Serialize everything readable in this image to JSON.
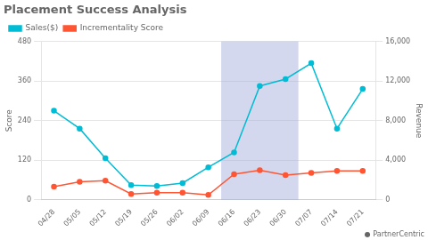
{
  "chart_data": {
    "type": "line",
    "title": "Placement Success Analysis",
    "categories": [
      "04/28",
      "05/05",
      "05/12",
      "05/19",
      "05/26",
      "06/02",
      "06/09",
      "06/16",
      "06/23",
      "06/30",
      "07/07",
      "07/14",
      "07/21"
    ],
    "series": [
      {
        "name": "Sales($)",
        "color": "#00bcd4",
        "axis": "y2",
        "marker": "circle",
        "values": [
          9000,
          7200,
          4200,
          1500,
          1400,
          1700,
          3300,
          4800,
          11500,
          12200,
          13800,
          7200,
          11200
        ]
      },
      {
        "name": "Incrementality Score",
        "color": "#ff5533",
        "marker": "circle",
        "values": [
          40,
          55,
          58,
          18,
          22,
          22,
          15,
          78,
          90,
          75,
          82,
          88,
          88
        ]
      }
    ],
    "ylabel": "Score",
    "y2label": "Revenue",
    "ylim": [
      0,
      480
    ],
    "yticks": [
      0,
      120,
      240,
      360,
      480
    ],
    "y2lim": [
      0,
      16000
    ],
    "y2ticks": [
      0,
      4000,
      8000,
      12000,
      16000
    ],
    "shaded_span": {
      "from": "06/16",
      "to": "06/30"
    },
    "annotation": "● PartnerCentric",
    "grid": "y",
    "legend": "upper left"
  }
}
